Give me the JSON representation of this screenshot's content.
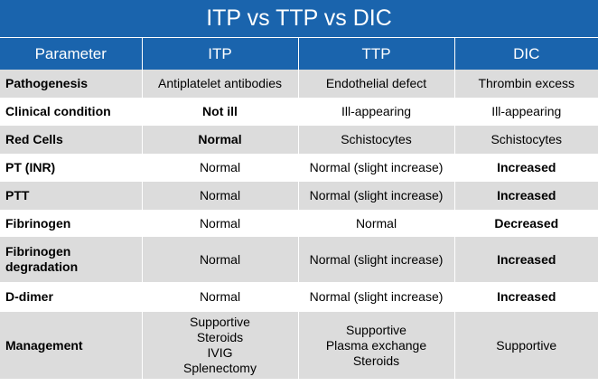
{
  "title": "ITP vs TTP vs DIC",
  "headers": [
    "Parameter",
    "ITP",
    "TTP",
    "DIC"
  ],
  "rows": [
    {
      "parameter": "Pathogenesis",
      "itp": "Antiplatelet antibodies",
      "ttp": "Endothelial defect",
      "dic": "Thrombin excess"
    },
    {
      "parameter": "Clinical condition",
      "itp": "Not ill",
      "ttp": "Ill-appearing",
      "dic": "Ill-appearing"
    },
    {
      "parameter": "Red Cells",
      "itp": "Normal",
      "ttp": "Schistocytes",
      "dic": "Schistocytes"
    },
    {
      "parameter": "PT (INR)",
      "itp": "Normal",
      "ttp": "Normal (slight increase)",
      "dic": "Increased"
    },
    {
      "parameter": "PTT",
      "itp": "Normal",
      "ttp": "Normal (slight increase)",
      "dic": "Increased"
    },
    {
      "parameter": "Fibrinogen",
      "itp": "Normal",
      "ttp": "Normal",
      "dic": "Decreased"
    },
    {
      "parameter": "Fibrinogen degradation",
      "itp": "Normal",
      "ttp": "Normal (slight increase)",
      "dic": "Increased"
    },
    {
      "parameter": "D-dimer",
      "itp": "Normal",
      "ttp": "Normal (slight increase)",
      "dic": "Increased"
    },
    {
      "parameter": "Management",
      "itp": [
        "Supportive",
        "Steroids",
        "IVIG",
        "Splenectomy"
      ],
      "ttp": [
        "Supportive",
        "Plasma exchange",
        "Steroids"
      ],
      "dic": "Supportive"
    }
  ]
}
